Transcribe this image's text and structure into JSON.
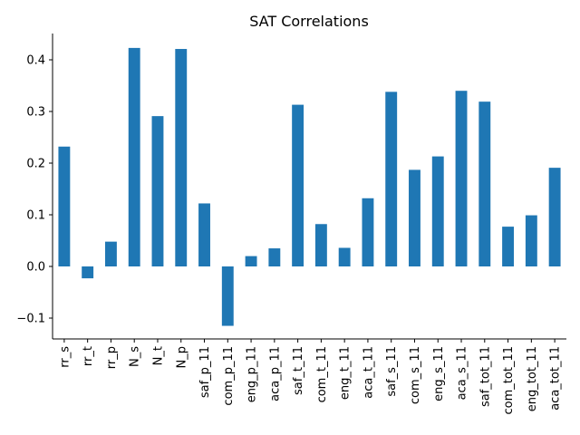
{
  "chart_data": {
    "type": "bar",
    "title": "SAT Correlations",
    "xlabel": "",
    "ylabel": "",
    "categories": [
      "rr_s",
      "rr_t",
      "rr_p",
      "N_s",
      "N_t",
      "N_p",
      "saf_p_11",
      "com_p_11",
      "eng_p_11",
      "aca_p_11",
      "saf_t_11",
      "com_t_11",
      "eng_t_11",
      "aca_t_11",
      "saf_s_11",
      "com_s_11",
      "eng_s_11",
      "aca_s_11",
      "saf_tot_11",
      "com_tot_11",
      "eng_tot_11",
      "aca_tot_11"
    ],
    "values": [
      0.232,
      -0.023,
      0.048,
      0.423,
      0.291,
      0.421,
      0.122,
      -0.115,
      0.02,
      0.035,
      0.313,
      0.082,
      0.036,
      0.132,
      0.338,
      0.187,
      0.213,
      0.34,
      0.319,
      0.077,
      0.099,
      0.191
    ],
    "ylim": [
      -0.14,
      0.45
    ],
    "yticks": [
      -0.1,
      0.0,
      0.1,
      0.2,
      0.3,
      0.4
    ],
    "ytick_labels": [
      "−0.1",
      "0.0",
      "0.1",
      "0.2",
      "0.3",
      "0.4"
    ],
    "bar_color": "#1f77b4",
    "grid": false,
    "legend": "none"
  }
}
